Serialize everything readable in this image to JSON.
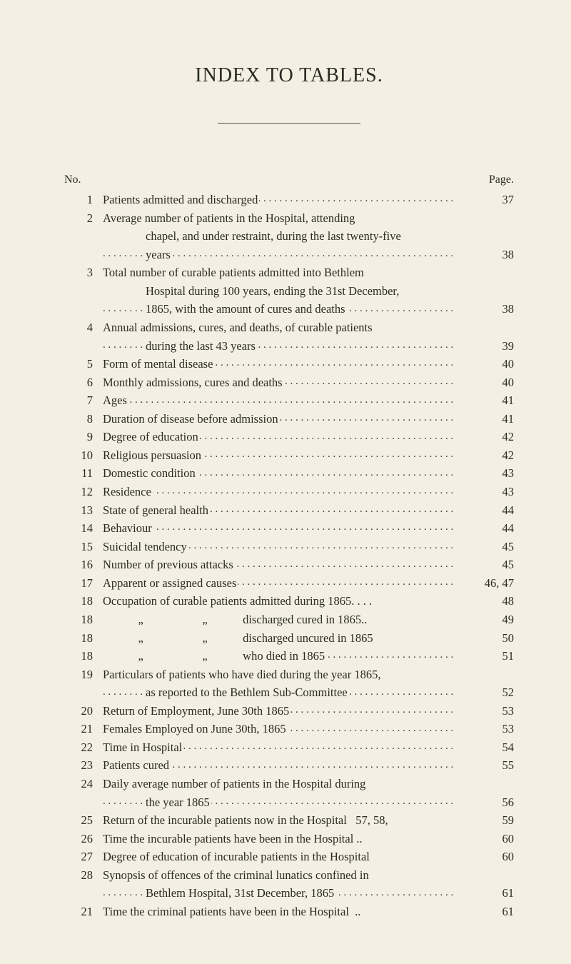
{
  "title": "INDEX TO TABLES.",
  "col_headers": {
    "no": "No.",
    "page": "Page."
  },
  "entries": [
    {
      "no": "1",
      "text": "Patients admitted and discharged",
      "page": "37"
    },
    {
      "no": "2",
      "text": "Average number of patients in the Hospital, attending chapel, and under restraint, during the last twenty-five years",
      "page": "38",
      "multiline": true,
      "lines": [
        "Average number of patients in the Hospital, attending",
        "chapel, and under restraint, during the last twenty-five",
        "years"
      ]
    },
    {
      "no": "3",
      "text": "Total number of curable patients admitted into Bethlem Hospital during 100 years, ending the 31st December, 1865, with the amount of cures and deaths",
      "page": "38",
      "multiline": true,
      "lines": [
        "Total number of curable patients admitted into Bethlem",
        "Hospital during 100 years, ending the 31st December,",
        "1865, with the amount of cures and deaths"
      ]
    },
    {
      "no": "4",
      "text": "Annual admissions, cures, and deaths, of curable patients during the last 43 years",
      "page": "39",
      "multiline": true,
      "lines": [
        "Annual admissions, cures, and deaths, of curable patients",
        "during the last 43 years"
      ]
    },
    {
      "no": "5",
      "text": "Form of mental disease",
      "page": "40"
    },
    {
      "no": "6",
      "text": "Monthly admissions, cures and deaths",
      "page": "40"
    },
    {
      "no": "7",
      "text": "Ages",
      "page": "41"
    },
    {
      "no": "8",
      "text": "Duration of disease before admission",
      "page": "41"
    },
    {
      "no": "9",
      "text": "Degree of education",
      "page": "42"
    },
    {
      "no": "10",
      "text": "Religious persuasion",
      "page": "42"
    },
    {
      "no": "11",
      "text": "Domestic condition",
      "page": "43"
    },
    {
      "no": "12",
      "text": "Residence",
      "page": "43"
    },
    {
      "no": "13",
      "text": "State of general health",
      "page": "44"
    },
    {
      "no": "14",
      "text": "Behaviour",
      "page": "44"
    },
    {
      "no": "15",
      "text": "Suicidal tendency",
      "page": "45"
    },
    {
      "no": "16",
      "text": "Number of previous attacks",
      "page": "45"
    },
    {
      "no": "17",
      "text": "Apparent or assigned causes",
      "page": "46, 47"
    },
    {
      "no": "18",
      "text": "Occupation of curable patients admitted during 1865. . . .",
      "page": "48",
      "noleader": true
    },
    {
      "no": "18",
      "text": "            „                    „            discharged cured in 1865..",
      "page": "49",
      "noleader": true
    },
    {
      "no": "18",
      "text": "            „                    „            discharged uncured in 1865",
      "page": "50",
      "noleader": true
    },
    {
      "no": "18",
      "text": "            „                    „            who died in 1865",
      "page": "51"
    },
    {
      "no": "19",
      "text": "Particulars of patients who have died during the year 1865, as reported to the Bethlem Sub-Committee",
      "page": "52",
      "multiline": true,
      "lines": [
        "Particulars of patients who have died during the year 1865,",
        "as reported to the Bethlem Sub-Committee"
      ]
    },
    {
      "no": "20",
      "text": "Return of Employment, June 30th 1865",
      "page": "53"
    },
    {
      "no": "21",
      "text": "Females Employed on June 30th, 1865",
      "page": "53"
    },
    {
      "no": "22",
      "text": "Time in Hospital",
      "page": "54"
    },
    {
      "no": "23",
      "text": "Patients cured",
      "page": "55"
    },
    {
      "no": "24",
      "text": "Daily average number of patients in the Hospital during the year 1865",
      "page": "56",
      "multiline": true,
      "lines": [
        "Daily average number of patients in the Hospital during",
        "the year 1865"
      ]
    },
    {
      "no": "25",
      "text": "Return of the incurable patients now in the Hospital   57, 58,",
      "page": "59",
      "noleader": true
    },
    {
      "no": "26",
      "text": "Time the incurable patients have been in the Hospital ..",
      "page": "60",
      "noleader": true
    },
    {
      "no": "27",
      "text": "Degree of education of incurable patients in the Hospital",
      "page": "60",
      "noleader": true
    },
    {
      "no": "28",
      "text": "Synopsis of offences of the criminal lunatics confined in Bethlem Hospital, 31st December, 1865",
      "page": "61",
      "multiline": true,
      "lines": [
        "Synopsis of offences of the criminal lunatics confined in",
        "Bethlem Hospital, 31st December, 1865"
      ]
    },
    {
      "no": "21",
      "text": "Time the criminal patients have been in the Hospital  ..",
      "page": "61",
      "noleader": true
    }
  ]
}
